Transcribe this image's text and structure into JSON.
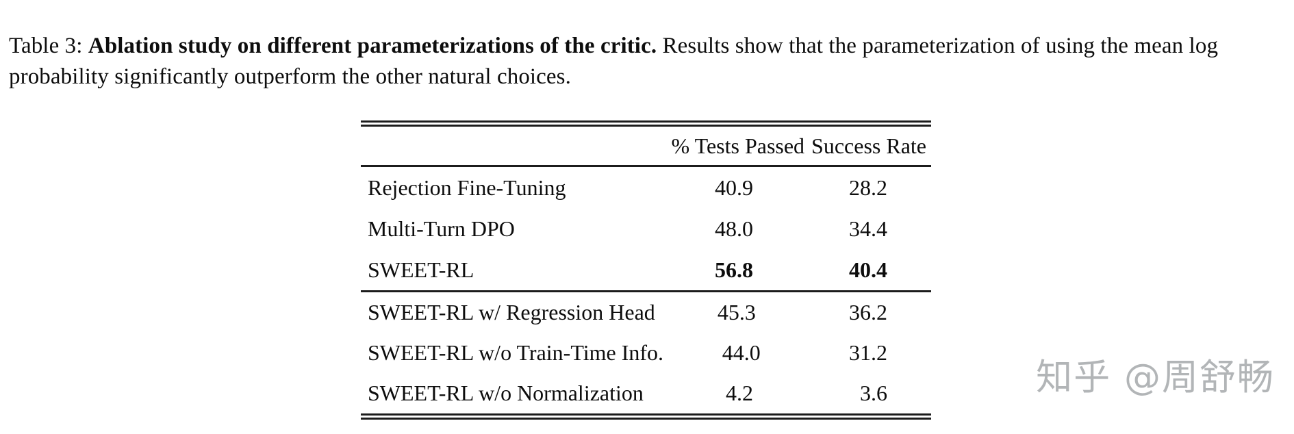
{
  "caption": {
    "prefix": "Table 3: ",
    "bold": "Ablation study on different parameterizations of the critic.",
    "rest": " Results show that the parameterization of using the mean log probability significantly outperform the other natural choices."
  },
  "table": {
    "columns": [
      "% Tests Passed",
      "Success Rate"
    ],
    "groups": [
      {
        "rows": [
          {
            "label": "Rejection Fine-Tuning",
            "tests_passed": "40.9",
            "success_rate": "28.2"
          },
          {
            "label": "Multi-Turn DPO",
            "tests_passed": "48.0",
            "success_rate": "34.4"
          },
          {
            "label": "SWEET-RL",
            "tests_passed": "56.8",
            "success_rate": "40.4"
          }
        ]
      },
      {
        "rows": [
          {
            "label": "SWEET-RL w/ Regression Head",
            "tests_passed": "45.3",
            "success_rate": "36.2"
          },
          {
            "label": "SWEET-RL w/o Train-Time Info.",
            "tests_passed": "44.0",
            "success_rate": "31.2"
          },
          {
            "label": "SWEET-RL w/o Normalization",
            "tests_passed": "4.2",
            "success_rate": "3.6"
          }
        ]
      }
    ]
  },
  "watermark": {
    "text": "知乎 @周舒畅",
    "color": "#b2b5b7"
  },
  "colors": {
    "text": "#0d0d0d",
    "rule": "#1c1c1c",
    "background": "#ffffff"
  }
}
